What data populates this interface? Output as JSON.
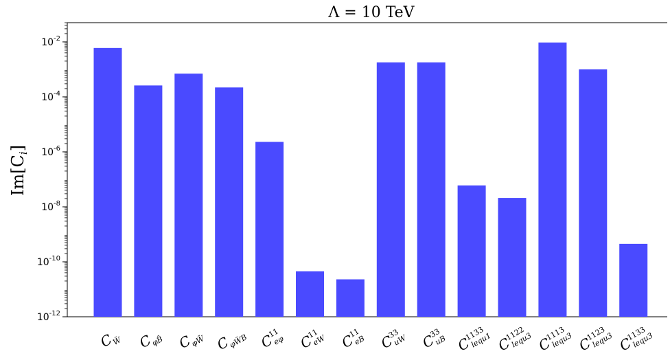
{
  "chart_data": {
    "type": "bar",
    "title": "Λ = 10 TeV",
    "ylabel": "Im[C",
    "ylabel_sub": "i",
    "ylabel_close": "]",
    "yscale": "log",
    "ylim": [
      1e-12,
      0.05
    ],
    "yticks": [
      {
        "base": "10",
        "exp": "-2",
        "value": 0.01
      },
      {
        "base": "10",
        "exp": "-4",
        "value": 0.0001
      },
      {
        "base": "10",
        "exp": "-6",
        "value": 1e-06
      },
      {
        "base": "10",
        "exp": "-8",
        "value": 1e-08
      },
      {
        "base": "10",
        "exp": "-10",
        "value": 1e-10
      },
      {
        "base": "10",
        "exp": "-12",
        "value": 1e-12
      }
    ],
    "bar_color": "#4a4aff",
    "categories": [
      {
        "main": "C",
        "sub": "W̃",
        "sup": ""
      },
      {
        "main": "C",
        "sub": "φB̃",
        "sup": ""
      },
      {
        "main": "C",
        "sub": "φW̃",
        "sup": ""
      },
      {
        "main": "C",
        "sub": "φW̃B",
        "sup": ""
      },
      {
        "main": "C",
        "sub": "eφ",
        "sup": "11"
      },
      {
        "main": "C",
        "sub": "eW",
        "sup": "11"
      },
      {
        "main": "C",
        "sub": "eB",
        "sup": "11"
      },
      {
        "main": "C",
        "sub": "uW",
        "sup": "33"
      },
      {
        "main": "C",
        "sub": "uB",
        "sup": "33"
      },
      {
        "main": "C",
        "sub": "lequ1",
        "sup": "1133"
      },
      {
        "main": "C",
        "sub": "lequ3",
        "sup": "1122"
      },
      {
        "main": "C",
        "sub": "lequ3",
        "sup": "1113"
      },
      {
        "main": "C",
        "sub": "lequ3",
        "sup": "1123"
      },
      {
        "main": "C",
        "sub": "lequ3",
        "sup": "1133"
      }
    ],
    "values": [
      0.006,
      0.00026,
      0.0007,
      0.00022,
      2.3e-06,
      4.5e-11,
      2.3e-11,
      0.0018,
      0.0018,
      6e-08,
      2.1e-08,
      0.0095,
      0.001,
      4.5e-10
    ]
  }
}
